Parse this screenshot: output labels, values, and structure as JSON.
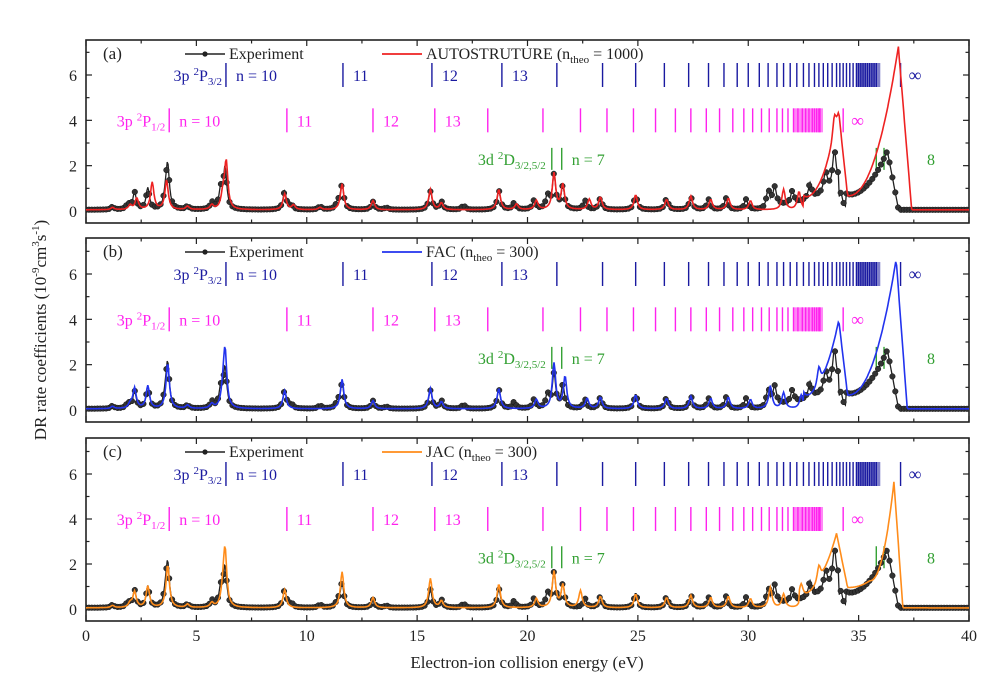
{
  "chart_data": [
    {
      "type": "line",
      "panel_label": "(a)",
      "xlabel": "Electron-ion collision energy (eV)",
      "ylabel": "DR rate coefficients (10^-9 cm^3 s^-1)",
      "xlim": [
        0,
        40
      ],
      "ylim": [
        -0.3,
        7.5
      ],
      "xticks": [
        0,
        5,
        10,
        15,
        20,
        25,
        30,
        35,
        40
      ],
      "yticks": [
        0,
        2,
        4,
        6
      ],
      "grid": false,
      "legend": [
        {
          "name": "Experiment",
          "color": "#222222",
          "marker": "circle"
        },
        {
          "name": "AUTOSTRUTURE",
          "sub": "theo",
          "suffix_value": "1000",
          "color": "#ee2222"
        }
      ],
      "series": [
        {
          "name": "Experiment",
          "color": "#222222",
          "baseline": 0.05,
          "peaks": [
            [
              1.2,
              0.12
            ],
            [
              1.9,
              0.25
            ],
            [
              2.2,
              0.75
            ],
            [
              2.8,
              0.95
            ],
            [
              3.6,
              0.5
            ],
            [
              3.7,
              1.9
            ],
            [
              4.6,
              0.15
            ],
            [
              5.7,
              0.3
            ],
            [
              6.1,
              0.8
            ],
            [
              6.3,
              1.8
            ],
            [
              9.0,
              0.8
            ],
            [
              9.3,
              0.2
            ],
            [
              10.6,
              0.15
            ],
            [
              11.4,
              0.3
            ],
            [
              11.6,
              1.1
            ],
            [
              13.0,
              0.35
            ],
            [
              13.6,
              0.1
            ],
            [
              15.6,
              0.8
            ],
            [
              16.1,
              0.35
            ],
            [
              17.1,
              0.2
            ],
            [
              18.7,
              0.85
            ],
            [
              19.4,
              0.3
            ],
            [
              20.3,
              0.4
            ],
            [
              20.9,
              0.6
            ],
            [
              21.2,
              1.5
            ],
            [
              21.6,
              1.0
            ],
            [
              22.6,
              0.4
            ],
            [
              23.3,
              0.5
            ],
            [
              24.9,
              0.65
            ],
            [
              26.3,
              0.5
            ],
            [
              27.4,
              0.55
            ],
            [
              28.2,
              0.45
            ],
            [
              29.0,
              0.5
            ],
            [
              29.9,
              0.45
            ],
            [
              30.9,
              0.9
            ],
            [
              31.2,
              0.75
            ],
            [
              32.0,
              0.55
            ],
            [
              32.8,
              0.7
            ],
            [
              33.5,
              0.9
            ],
            [
              33.9,
              1.6
            ],
            [
              34.2,
              0.6
            ]
          ],
          "ramps": [
            [
              31.0,
              34.1,
              0.2,
              1.1
            ],
            [
              34.4,
              36.3,
              0.6,
              2.6
            ],
            [
              36.3,
              36.8,
              2.6,
              0.05
            ]
          ]
        },
        {
          "name": "AUTOSTRUTURE (n_theo = 1000)",
          "color": "#ee2222",
          "baseline": 0.05,
          "peaks": [
            [
              1.2,
              0.1
            ],
            [
              2.0,
              0.2
            ],
            [
              2.3,
              0.5
            ],
            [
              3.0,
              1.2
            ],
            [
              3.65,
              1.3
            ],
            [
              4.6,
              0.15
            ],
            [
              5.7,
              0.2
            ],
            [
              6.2,
              0.6
            ],
            [
              6.35,
              2.1
            ],
            [
              9.0,
              0.7
            ],
            [
              9.4,
              0.2
            ],
            [
              10.6,
              0.1
            ],
            [
              11.6,
              1.15
            ],
            [
              13.0,
              0.4
            ],
            [
              15.6,
              0.9
            ],
            [
              16.1,
              0.3
            ],
            [
              18.7,
              0.9
            ],
            [
              19.5,
              0.25
            ],
            [
              20.4,
              0.4
            ],
            [
              21.2,
              1.6
            ],
            [
              21.6,
              1.1
            ],
            [
              22.8,
              0.45
            ],
            [
              23.3,
              0.55
            ],
            [
              24.9,
              0.65
            ],
            [
              26.3,
              0.45
            ],
            [
              27.4,
              0.6
            ],
            [
              28.3,
              0.45
            ],
            [
              29.1,
              0.5
            ],
            [
              30.1,
              0.4
            ],
            [
              31.6,
              0.9
            ],
            [
              32.3,
              0.8
            ],
            [
              33.9,
              0.9
            ]
          ],
          "ramps": [
            [
              32.5,
              34.1,
              0.5,
              4.2
            ],
            [
              34.1,
              34.5,
              4.2,
              0.6
            ],
            [
              34.5,
              36.8,
              0.6,
              7.2
            ],
            [
              36.8,
              37.4,
              7.2,
              0.05
            ]
          ]
        }
      ],
      "rydberg_series": [
        {
          "label": "3p 2P3/2",
          "color": "#1a1aa0",
          "row_y": 6.0,
          "n_labels": [
            "n = 10",
            "11",
            "12",
            "13"
          ],
          "positions": [
            6.34,
            11.64,
            15.67,
            18.84,
            21.33,
            23.4,
            24.9,
            26.2,
            27.3,
            28.2,
            28.9,
            29.5,
            30.0,
            30.5,
            30.9,
            31.3,
            31.6,
            31.9,
            32.2,
            32.5,
            32.75,
            33.0,
            33.2,
            33.4,
            33.6,
            33.8,
            34.0,
            34.15,
            34.3,
            34.45,
            34.6,
            34.75,
            34.9,
            35.0,
            35.1,
            35.2,
            35.3,
            35.4,
            35.5,
            35.6,
            35.7,
            35.8
          ],
          "limit": 36.9,
          "limit_label": "∞"
        },
        {
          "label": "3p 2P1/2",
          "color": "#ff22ee",
          "row_y": 4.0,
          "n_labels": [
            "n = 10",
            "11",
            "12",
            "13"
          ],
          "positions": [
            3.77,
            9.1,
            13.0,
            15.8,
            18.2,
            20.7,
            22.4,
            23.6,
            24.8,
            25.8,
            26.7,
            27.4,
            28.1,
            28.7,
            29.3,
            29.8,
            30.2,
            30.6,
            30.95,
            31.3,
            31.55,
            31.8,
            32.05,
            32.25,
            32.45,
            32.6,
            32.75,
            32.9,
            33.0,
            33.1,
            33.2,
            33.25
          ],
          "limit": 34.3,
          "limit_label": "∞"
        },
        {
          "label": "3d 2D3/2,5/2",
          "color": "#33a033",
          "row_y": 2.3,
          "n_labels": [
            "n = 7"
          ],
          "positions": [
            21.1,
            21.55
          ],
          "second": {
            "positions": [
              35.8,
              36.15
            ],
            "label": "8"
          }
        }
      ]
    },
    {
      "type": "line",
      "panel_label": "(b)",
      "xlim": [
        0,
        40
      ],
      "ylim": [
        -0.3,
        7.5
      ],
      "xticks": [
        0,
        5,
        10,
        15,
        20,
        25,
        30,
        35,
        40
      ],
      "yticks": [
        0,
        2,
        4,
        6
      ],
      "grid": false,
      "legend": [
        {
          "name": "Experiment",
          "color": "#222222",
          "marker": "circle"
        },
        {
          "name": "FAC",
          "sub": "theo",
          "suffix_value": "300",
          "color": "#2233ee"
        }
      ],
      "series": [
        {
          "name": "Experiment",
          "ref": "panel_a_experiment"
        },
        {
          "name": "FAC (n_theo = 300)",
          "color": "#2233ee",
          "baseline": 0.05,
          "peaks": [
            [
              1.2,
              0.1
            ],
            [
              2.0,
              0.2
            ],
            [
              2.2,
              0.9
            ],
            [
              2.8,
              1.0
            ],
            [
              3.7,
              2.0
            ],
            [
              4.6,
              0.15
            ],
            [
              5.7,
              0.2
            ],
            [
              6.2,
              0.6
            ],
            [
              6.3,
              2.5
            ],
            [
              9.0,
              0.8
            ],
            [
              11.6,
              1.3
            ],
            [
              13.0,
              0.35
            ],
            [
              15.6,
              0.9
            ],
            [
              16.1,
              0.3
            ],
            [
              18.7,
              0.9
            ],
            [
              20.4,
              0.4
            ],
            [
              21.2,
              2.0
            ],
            [
              21.7,
              1.4
            ],
            [
              22.7,
              0.45
            ],
            [
              23.3,
              0.5
            ],
            [
              24.9,
              0.6
            ],
            [
              26.3,
              0.45
            ],
            [
              27.4,
              0.55
            ],
            [
              28.3,
              0.45
            ],
            [
              29.1,
              0.5
            ],
            [
              30.1,
              0.4
            ],
            [
              31.0,
              1.0
            ],
            [
              31.6,
              0.7
            ],
            [
              32.4,
              0.6
            ],
            [
              33.2,
              0.8
            ]
          ],
          "ramps": [
            [
              32.5,
              34.1,
              0.5,
              3.9
            ],
            [
              34.1,
              34.5,
              3.9,
              0.6
            ],
            [
              34.5,
              36.7,
              0.6,
              6.6
            ],
            [
              36.7,
              37.2,
              6.6,
              0.05
            ]
          ]
        }
      ],
      "rydberg_series_ref": "same as panel (a)"
    },
    {
      "type": "line",
      "panel_label": "(c)",
      "xlim": [
        0,
        40
      ],
      "ylim": [
        -0.3,
        7.5
      ],
      "xticks": [
        0,
        5,
        10,
        15,
        20,
        25,
        30,
        35,
        40
      ],
      "yticks": [
        0,
        2,
        4,
        6
      ],
      "grid": false,
      "legend": [
        {
          "name": "Experiment",
          "color": "#222222",
          "marker": "circle"
        },
        {
          "name": "JAC",
          "sub": "theo",
          "suffix_value": "300",
          "color": "#ff8c1a"
        }
      ],
      "series": [
        {
          "name": "Experiment",
          "ref": "panel_a_experiment"
        },
        {
          "name": "JAC (n_theo = 300)",
          "color": "#ff8c1a",
          "baseline": 0.05,
          "peaks": [
            [
              1.2,
              0.1
            ],
            [
              2.0,
              0.2
            ],
            [
              2.2,
              0.7
            ],
            [
              2.8,
              0.95
            ],
            [
              3.7,
              1.9
            ],
            [
              4.6,
              0.15
            ],
            [
              5.7,
              0.2
            ],
            [
              6.2,
              0.6
            ],
            [
              6.3,
              2.5
            ],
            [
              9.0,
              0.8
            ],
            [
              11.6,
              1.6
            ],
            [
              13.0,
              0.45
            ],
            [
              15.6,
              1.3
            ],
            [
              16.1,
              0.3
            ],
            [
              18.7,
              1.05
            ],
            [
              20.4,
              0.4
            ],
            [
              21.2,
              1.6
            ],
            [
              21.6,
              1.0
            ],
            [
              22.4,
              0.75
            ],
            [
              23.3,
              0.5
            ],
            [
              24.9,
              0.6
            ],
            [
              26.3,
              0.45
            ],
            [
              27.4,
              0.55
            ],
            [
              28.3,
              0.45
            ],
            [
              29.1,
              0.5
            ],
            [
              30.1,
              0.4
            ],
            [
              31.0,
              0.9
            ],
            [
              31.6,
              0.6
            ],
            [
              32.4,
              0.55
            ],
            [
              33.2,
              0.7
            ]
          ],
          "ramps": [
            [
              32.3,
              34.0,
              0.5,
              3.3
            ],
            [
              34.0,
              34.5,
              3.3,
              0.9
            ],
            [
              34.5,
              35.5,
              0.9,
              1.2
            ],
            [
              35.5,
              36.6,
              1.2,
              5.6
            ],
            [
              36.6,
              37.0,
              5.6,
              0.05
            ]
          ]
        }
      ],
      "rydberg_series_ref": "same as panel (a)"
    }
  ],
  "labels": {
    "xlabel": "Electron-ion collision energy (eV)",
    "ylabel_main": "DR rate coefficients (10",
    "ylabel_exp1": "-9",
    "ylabel_mid": "cm",
    "ylabel_exp2": "3",
    "ylabel_mid2": "s",
    "ylabel_exp3": "-1",
    "ylabel_end": ")",
    "theo_sub": "theo"
  }
}
